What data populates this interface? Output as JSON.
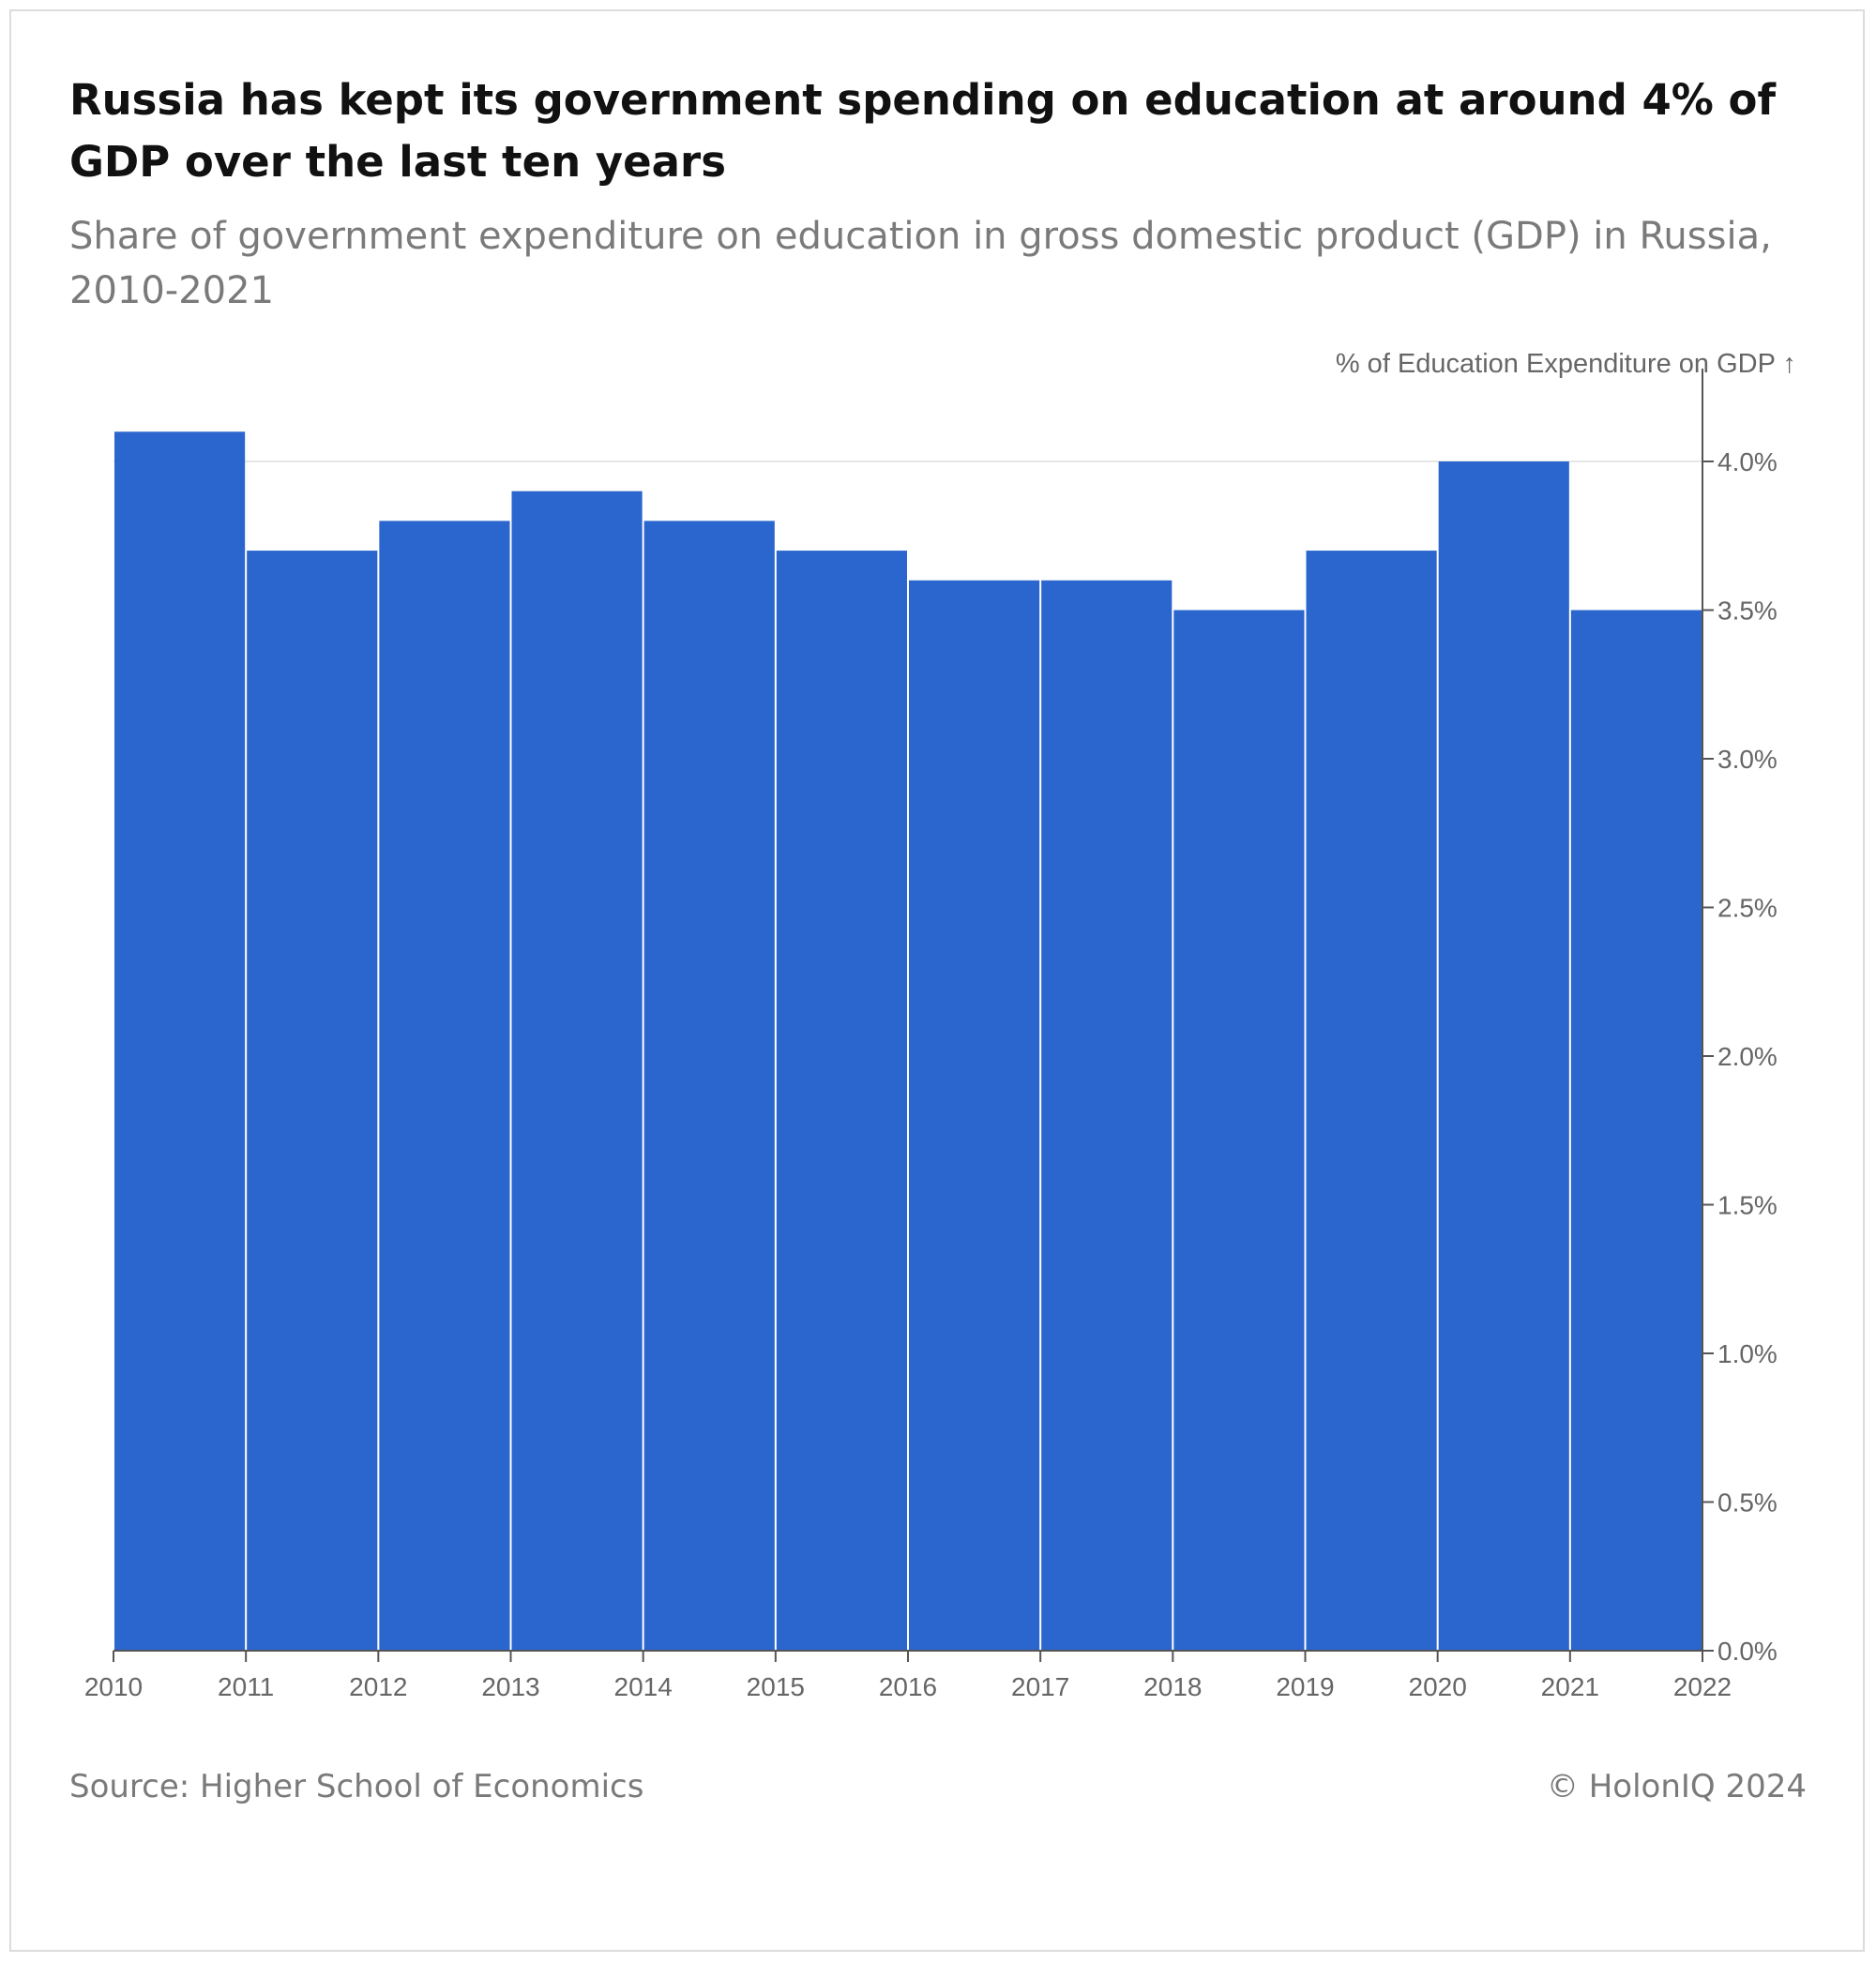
{
  "title": "Russia has kept its government spending on education at around 4% of GDP over the last ten years",
  "subtitle": "Share of government expenditure on education in gross domestic product (GDP) in Russia, 2010-2021",
  "source": "Source: Higher School of Economics",
  "copyright": "© HolonIQ 2024",
  "colors": {
    "bar": "#2a66cd",
    "gridline": "#e6e6e6",
    "axis": "#555555",
    "text": "#666666"
  },
  "chart_data": {
    "type": "bar",
    "ylabel": "% of Education Expenditure on GDP ↑",
    "xlabel": "",
    "ylim": [
      0,
      4.0
    ],
    "y_axis_position": "right",
    "grid": "horizontal at 4.0% only",
    "x_ticks": [
      "2010",
      "2011",
      "2012",
      "2013",
      "2014",
      "2015",
      "2016",
      "2017",
      "2018",
      "2019",
      "2020",
      "2021",
      "2022"
    ],
    "y_ticks": [
      {
        "value": 0.0,
        "label": "0.0%"
      },
      {
        "value": 0.5,
        "label": "0.5%"
      },
      {
        "value": 1.0,
        "label": "1.0%"
      },
      {
        "value": 1.5,
        "label": "1.5%"
      },
      {
        "value": 2.0,
        "label": "2.0%"
      },
      {
        "value": 2.5,
        "label": "2.5%"
      },
      {
        "value": 3.0,
        "label": "3.0%"
      },
      {
        "value": 3.5,
        "label": "3.5%"
      },
      {
        "value": 4.0,
        "label": "4.0%"
      }
    ],
    "categories": [
      "2010",
      "2011",
      "2012",
      "2013",
      "2014",
      "2015",
      "2016",
      "2017",
      "2018",
      "2019",
      "2020",
      "2021"
    ],
    "values": [
      4.1,
      3.7,
      3.8,
      3.9,
      3.8,
      3.7,
      3.6,
      3.6,
      3.5,
      3.7,
      4.0,
      3.5
    ]
  }
}
